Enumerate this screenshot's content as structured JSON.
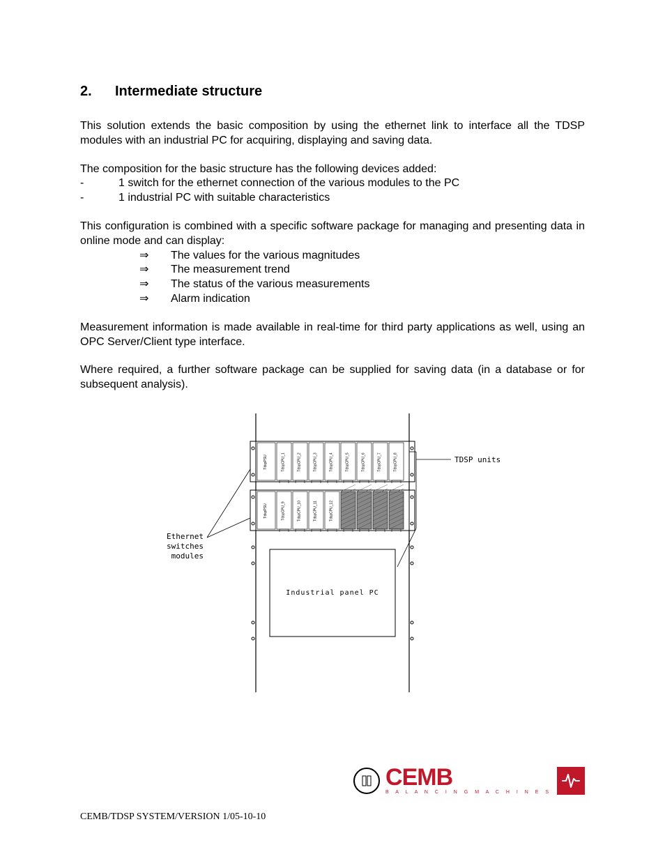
{
  "heading": {
    "number": "2.",
    "title": "Intermediate structure"
  },
  "para1": "This solution extends the basic composition by using the ethernet link to interface all the TDSP modules with an industrial PC for acquiring, displaying and saving data.",
  "para2_lead": "The composition for the basic structure has the following devices added:",
  "dash_items": [
    "1 switch for the ethernet connection of the various modules to the PC",
    "1 industrial PC with suitable characteristics"
  ],
  "para3": "This configuration is combined with a specific software package for managing and presenting data in online mode  and can display:",
  "arrow_items": [
    "The values for the various magnitudes",
    "The measurement trend",
    "The status of the various measurements",
    "Alarm indication"
  ],
  "para4": "Measurement information is made available in real-time for third party applications as well, using an OPC Server/Client type interface.",
  "para5": "Where required, a further software package can be supplied for saving data (in a database or for subsequent analysis).",
  "diagram": {
    "label_left_l1": "Ethernet",
    "label_left_l2": "switches",
    "label_left_l3": "modules",
    "label_right": "TDSP units",
    "panel_label": "Industrial panel PC",
    "row1_slots": [
      "TdspCPU_1",
      "TdspCPU_2",
      "TdspCPU_3",
      "TdspCPU_4",
      "TdspCPU_5",
      "TdspCPU_6",
      "TdspCPU_7",
      "TdspCPU_8"
    ],
    "row2_slots": [
      "TdspCPU_9",
      "TdspCPU_10",
      "TdspCPU_11",
      "TdspCPU_12"
    ],
    "row1_psu": "TdspPSU",
    "row2_psu": "TdspPSU",
    "colors": {
      "line": "#000000",
      "hatch": "#555555",
      "bg": "#ffffff"
    }
  },
  "logo": {
    "main": "CEMB",
    "sub": "B A L A N C I N G   M A C H I N E S",
    "color": "#c0172a"
  },
  "footer": "CEMB/TDSP SYSTEM/VERSION 1/05-10-10"
}
